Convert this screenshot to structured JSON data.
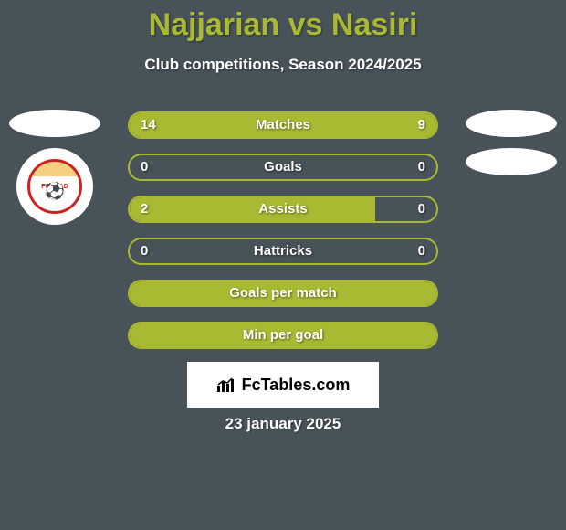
{
  "title": "Najjarian vs Nasiri",
  "subtitle": "Club competitions, Season 2024/2025",
  "footer": "FcTables.com",
  "date": "23 january 2025",
  "colors": {
    "background": "#475259",
    "accent": "#a9b931",
    "text": "#ffffff"
  },
  "left_team": {
    "name": "Foolad",
    "logo_text": "FOOLAD"
  },
  "bars": [
    {
      "label": "Matches",
      "left": "14",
      "right": "9",
      "left_pct": 61,
      "right_pct": 39,
      "show_values": true,
      "full": false
    },
    {
      "label": "Goals",
      "left": "0",
      "right": "0",
      "left_pct": 0,
      "right_pct": 0,
      "show_values": true,
      "full": false
    },
    {
      "label": "Assists",
      "left": "2",
      "right": "0",
      "left_pct": 80,
      "right_pct": 0,
      "show_values": true,
      "full": false
    },
    {
      "label": "Hattricks",
      "left": "0",
      "right": "0",
      "left_pct": 0,
      "right_pct": 0,
      "show_values": true,
      "full": false
    },
    {
      "label": "Goals per match",
      "left": "",
      "right": "",
      "left_pct": 0,
      "right_pct": 0,
      "show_values": false,
      "full": true
    },
    {
      "label": "Min per goal",
      "left": "",
      "right": "",
      "left_pct": 0,
      "right_pct": 0,
      "show_values": false,
      "full": true
    }
  ]
}
